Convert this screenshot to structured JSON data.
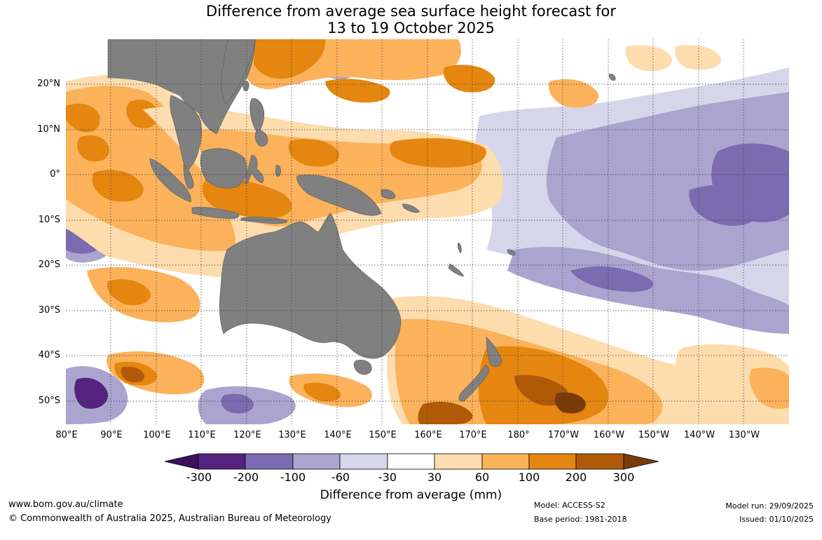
{
  "title": {
    "line1": "Difference from average sea surface height forecast for",
    "line2": "13 to 19 October 2025"
  },
  "map": {
    "region": "Indo-Pacific sea surface height anomaly forecast",
    "latitude_labels": [
      "20°N",
      "10°N",
      "0°",
      "10°S",
      "20°S",
      "30°S",
      "40°S",
      "50°S"
    ],
    "longitude_labels": [
      "80°E",
      "90°E",
      "100°E",
      "110°E",
      "120°E",
      "130°E",
      "140°E",
      "150°E",
      "160°E",
      "170°E",
      "180°",
      "170°W",
      "160°W",
      "150°W",
      "140°W",
      "130°W"
    ],
    "land_color": "#808080"
  },
  "legend": {
    "tick_labels": [
      "-300",
      "-200",
      "-100",
      "-60",
      "-30",
      "30",
      "60",
      "100",
      "200",
      "300"
    ],
    "label": "Difference from average (mm)",
    "colors": [
      "#3d0f5c",
      "#55237f",
      "#7b6bb0",
      "#aaa4cf",
      "#d6d6ea",
      "#ffffff",
      "#fddcae",
      "#fbb25b",
      "#e4860f",
      "#b05a08",
      "#7a3b0b"
    ]
  },
  "footer": {
    "website": "www.bom.gov.au/climate",
    "copyright": "© Commonwealth of Australia 2025, Australian Bureau of Meteorology",
    "model": "Model: ACCESS-S2",
    "base_period": "Base period: 1981-2018",
    "model_run": "Model run: 29/09/2025",
    "issued": "Issued: 01/10/2025"
  }
}
